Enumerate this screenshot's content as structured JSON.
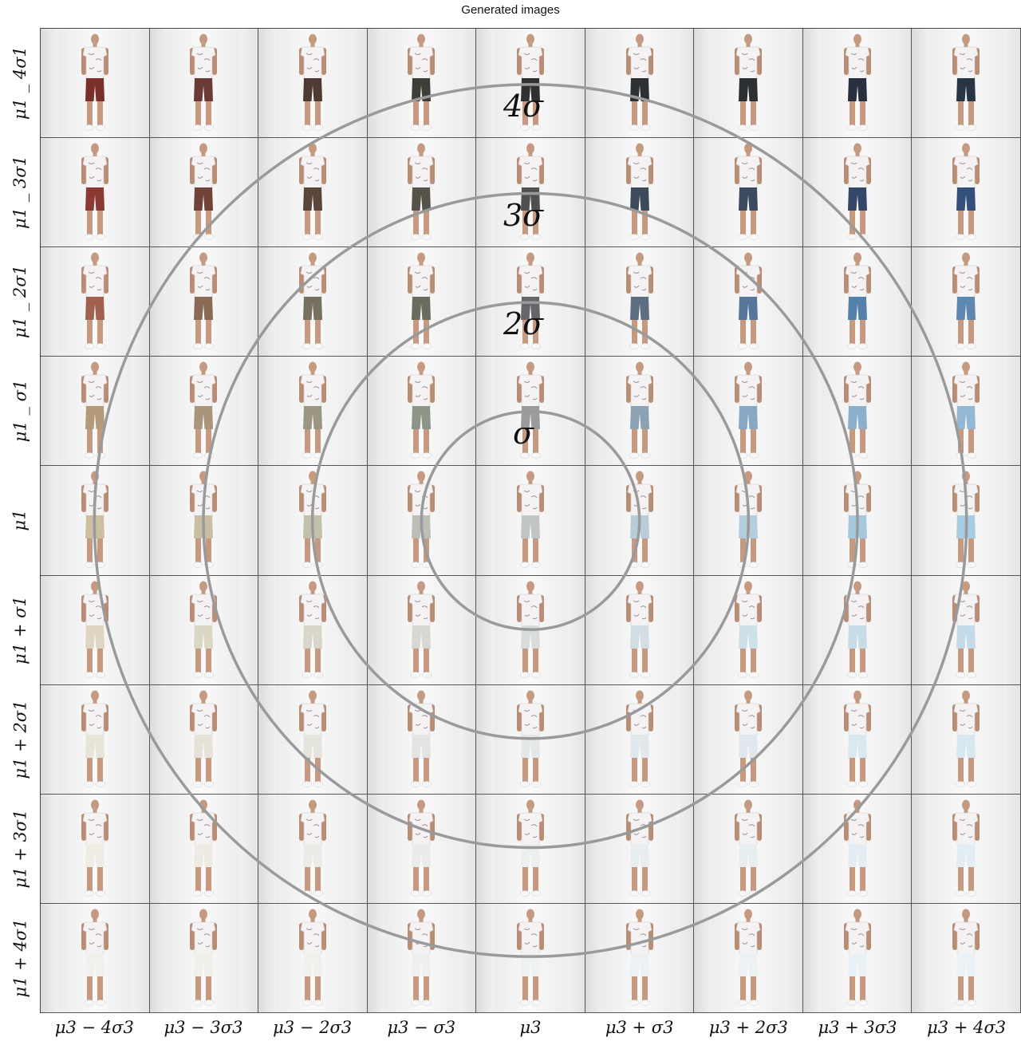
{
  "title": "Generated images",
  "row_labels": [
    "μ1 _ 4σ1",
    "μ1 _ 3σ1",
    "μ1 _ 2σ1",
    "μ1 _ σ1",
    "μ1",
    "μ1 + σ1",
    "μ1 + 2σ1",
    "μ1 + 3σ1",
    "μ1 + 4σ1"
  ],
  "col_labels": [
    "μ3 − 4σ3",
    "μ3 − 3σ3",
    "μ3 − 2σ3",
    "μ3 − σ3",
    "μ3",
    "μ3 + σ3",
    "μ3 + 2σ3",
    "μ3 + 3σ3",
    "μ3 + 4σ3"
  ],
  "ring_labels": [
    "σ",
    "2σ",
    "3σ",
    "4σ"
  ],
  "image_content": "full-body fashion model in white floral t-shirt and shorts; shorts color varies across grid",
  "shorts_colors": [
    [
      "#7a2f2b",
      "#6b3a34",
      "#4e3a33",
      "#3f3f37",
      "#2f3131",
      "#2d3133",
      "#2c3035",
      "#283040",
      "#283545"
    ],
    [
      "#8a3a32",
      "#6f4338",
      "#5a463a",
      "#55524a",
      "#505050",
      "#3d4a5a",
      "#3c4a60",
      "#34466a",
      "#34507a"
    ],
    [
      "#a0624e",
      "#8a6a55",
      "#76705e",
      "#6a6a60",
      "#64666a",
      "#5e6e82",
      "#57779a",
      "#5480aa",
      "#5e88b2"
    ],
    [
      "#b49a78",
      "#a8957a",
      "#9a9682",
      "#8e9488",
      "#9a9c9c",
      "#8aa2b4",
      "#86a8c4",
      "#8cb0cc",
      "#94b8d4"
    ],
    [
      "#cdbf9f",
      "#c8bea2",
      "#c4c0aa",
      "#bcc0b4",
      "#c0c6c6",
      "#b8cdd8",
      "#b4cede",
      "#a6c8de",
      "#a8cce2"
    ],
    [
      "#ded6c2",
      "#dcd6c4",
      "#d8d6ca",
      "#d6d8d2",
      "#d8dcdc",
      "#d2dee4",
      "#cee0e8",
      "#c8dce8",
      "#c4dcea"
    ],
    [
      "#e8e4d8",
      "#e6e2d8",
      "#e4e4dc",
      "#e2e4e2",
      "#e4e8e8",
      "#e0e8ec",
      "#dee8ee",
      "#dae8f0",
      "#d8e8f0"
    ],
    [
      "#efece4",
      "#eeebe4",
      "#ecece6",
      "#eaecea",
      "#ecefef",
      "#e8eef0",
      "#e6eef2",
      "#e4eef2",
      "#e2eef4"
    ],
    [
      "#f2f0ea",
      "#f1efea",
      "#f0f0ec",
      "#eef0ee",
      "#eff2f2",
      "#edf1f3",
      "#ecf2f4",
      "#eaf1f4",
      "#e9f2f5"
    ]
  ]
}
